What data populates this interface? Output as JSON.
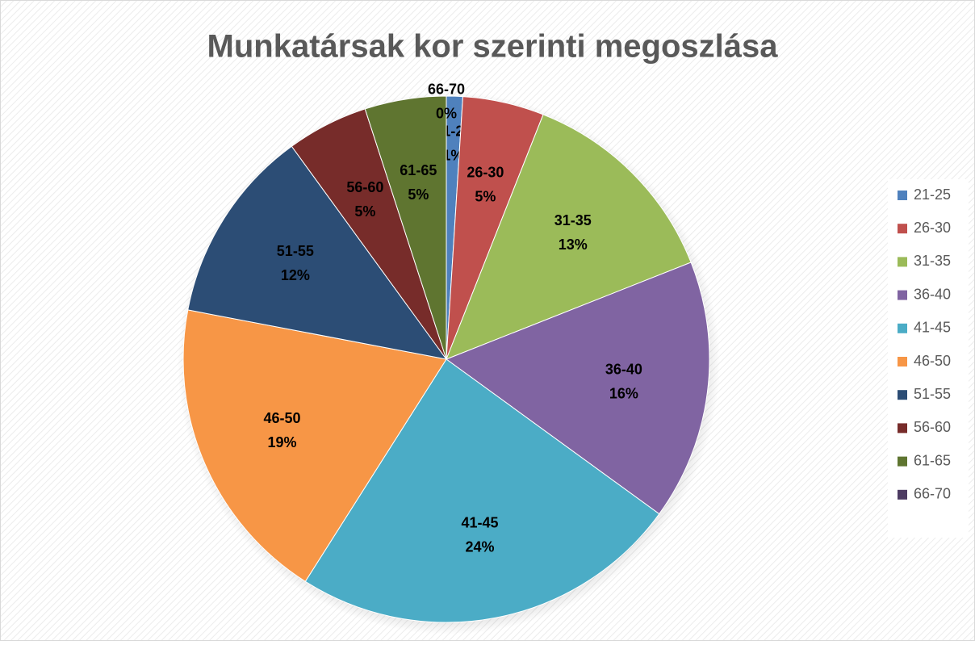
{
  "chart_data": {
    "type": "pie",
    "title": "Munkatársak kor szerinti megoszlása",
    "categories": [
      "21-25",
      "26-30",
      "31-35",
      "36-40",
      "41-45",
      "46-50",
      "51-55",
      "56-60",
      "61-65",
      "66-70"
    ],
    "values": [
      1,
      5,
      13,
      16,
      24,
      19,
      12,
      5,
      5,
      0
    ],
    "value_labels": [
      "1%",
      "5%",
      "13%",
      "16%",
      "24%",
      "19%",
      "12%",
      "5%",
      "5%",
      "0%"
    ],
    "colors": [
      "#4f81bd",
      "#c0504d",
      "#9bbb59",
      "#8064a2",
      "#4bacc6",
      "#f79646",
      "#2c4d75",
      "#772c2a",
      "#5f7530",
      "#4d3b62"
    ],
    "legend": "right"
  }
}
